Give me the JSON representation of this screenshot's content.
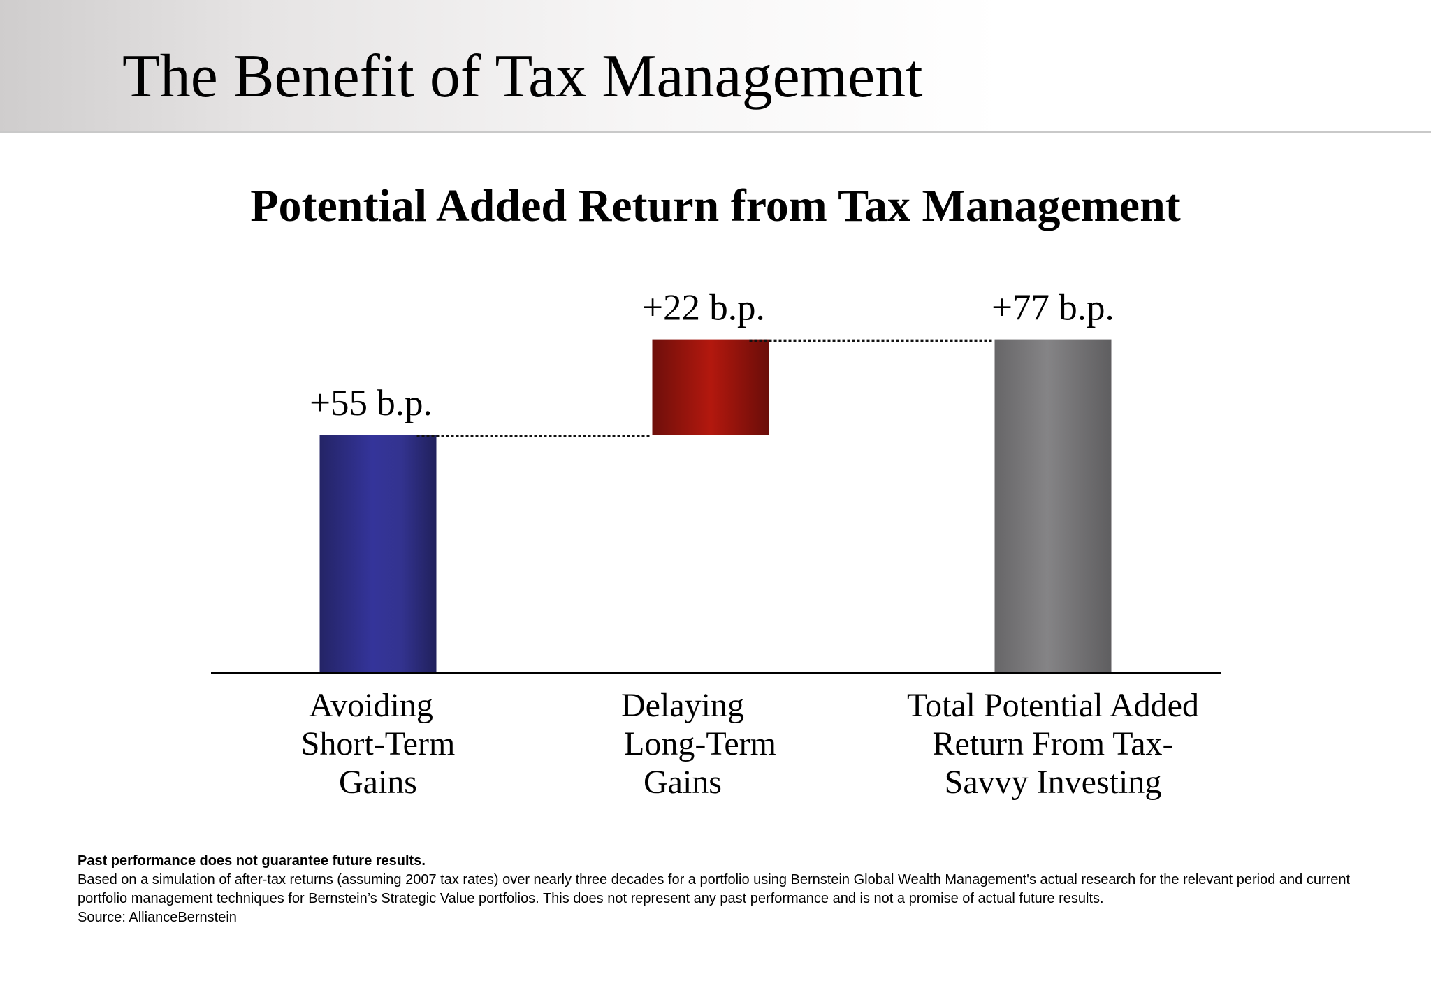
{
  "slide": {
    "title": "The Benefit of Tax Management"
  },
  "chart_data": {
    "type": "bar",
    "subtype": "waterfall",
    "title": "Potential Added Return from Tax Management",
    "xlabel": "",
    "ylabel": "",
    "unit": "b.p.",
    "ylim": [
      0,
      85
    ],
    "grid": false,
    "legend": "none",
    "categories": [
      "Avoiding Short-Term Gains",
      "Delaying Long-Term Gains",
      "Total Potential Added Return From Tax-Savvy Investing"
    ],
    "category_lines": [
      [
        "Avoiding",
        "Short-Term",
        "Gains"
      ],
      [
        "Delaying",
        "Long-Term",
        "Gains"
      ],
      [
        "Total Potential Added",
        "Return From Tax-",
        "Savvy Investing"
      ]
    ],
    "values": [
      55,
      22,
      77
    ],
    "bases": [
      0,
      55,
      0
    ],
    "data_labels": [
      "+55 b.p.",
      "+22 b.p.",
      "+77 b.p."
    ],
    "colors": [
      "#33338f",
      "#a8170f",
      "#7d7c7e"
    ],
    "connector_style": "dotted"
  },
  "footnote": {
    "disclaimer": "Past performance does not guarantee future results.",
    "text": "Based on a simulation of after-tax returns (assuming 2007 tax rates) over nearly three decades for a portfolio using Bernstein Global Wealth Management's actual research for the relevant period and current portfolio management techniques for Bernstein’s Strategic Value portfolios. This does not represent any past performance and is not a promise of actual future results.",
    "source": "Source: AllianceBernstein"
  }
}
